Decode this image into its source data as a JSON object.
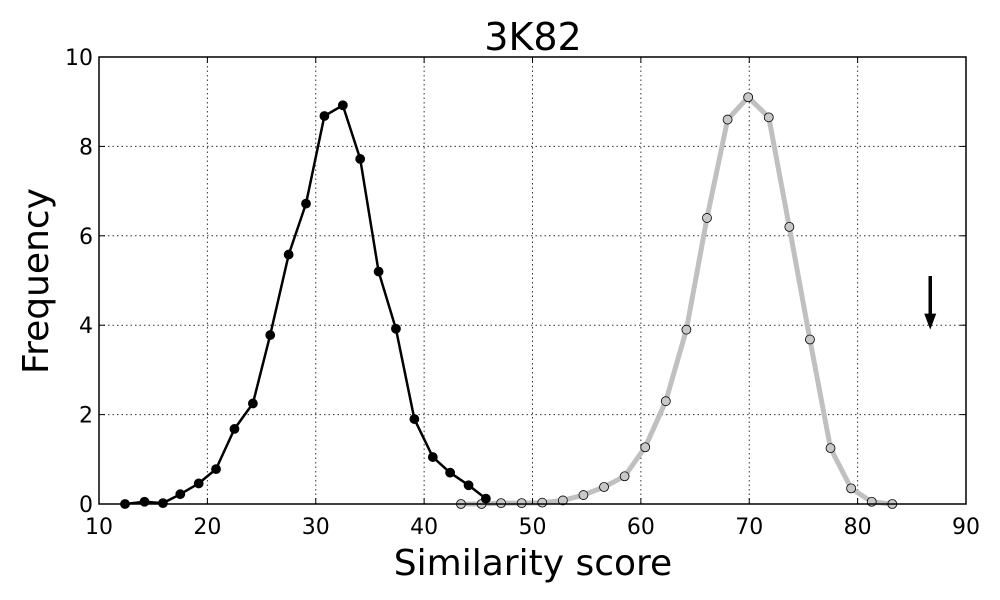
{
  "chart_data": {
    "type": "line",
    "title": "3K82",
    "xlabel": "Similarity score",
    "ylabel": "Frequency",
    "xlim": [
      10,
      90
    ],
    "ylim": [
      0,
      10
    ],
    "xticks": [
      "10",
      "20",
      "30",
      "40",
      "50",
      "60",
      "70",
      "80",
      "90"
    ],
    "yticks": [
      "0",
      "2",
      "4",
      "6",
      "8",
      "10"
    ],
    "grid": true,
    "legend": "none",
    "series": [
      {
        "color": "#000000",
        "marker_fill": "#000000",
        "x": [
          12.4,
          14.2,
          15.9,
          17.5,
          19.2,
          20.8,
          22.5,
          24.2,
          25.8,
          27.5,
          29.1,
          30.8,
          32.5,
          34.1,
          35.8,
          37.4,
          39.1,
          40.8,
          42.4,
          44.1,
          45.7
        ],
        "y": [
          0.0,
          0.05,
          0.02,
          0.22,
          0.46,
          0.78,
          1.68,
          2.25,
          3.78,
          5.58,
          6.72,
          8.68,
          8.92,
          7.72,
          5.2,
          3.92,
          1.9,
          1.05,
          0.7,
          0.42,
          0.12
        ]
      },
      {
        "color": "#c0c0c0",
        "marker_fill": "#c8c8c8",
        "x": [
          43.4,
          45.3,
          47.1,
          49.0,
          50.9,
          52.8,
          54.7,
          56.6,
          58.5,
          60.4,
          62.3,
          64.2,
          66.1,
          68.0,
          69.9,
          71.8,
          73.7,
          75.6,
          77.5,
          79.4,
          81.3,
          83.2
        ],
        "y": [
          0.0,
          0.0,
          0.02,
          0.02,
          0.03,
          0.08,
          0.2,
          0.38,
          0.62,
          1.27,
          2.3,
          3.9,
          6.4,
          8.6,
          9.1,
          8.65,
          6.2,
          3.68,
          1.25,
          0.35,
          0.05,
          0.0
        ]
      }
    ],
    "annotations": [
      {
        "type": "arrow-down",
        "x": 86.7,
        "y_start": 5.1,
        "y_end": 3.9,
        "color": "#000000"
      }
    ]
  }
}
